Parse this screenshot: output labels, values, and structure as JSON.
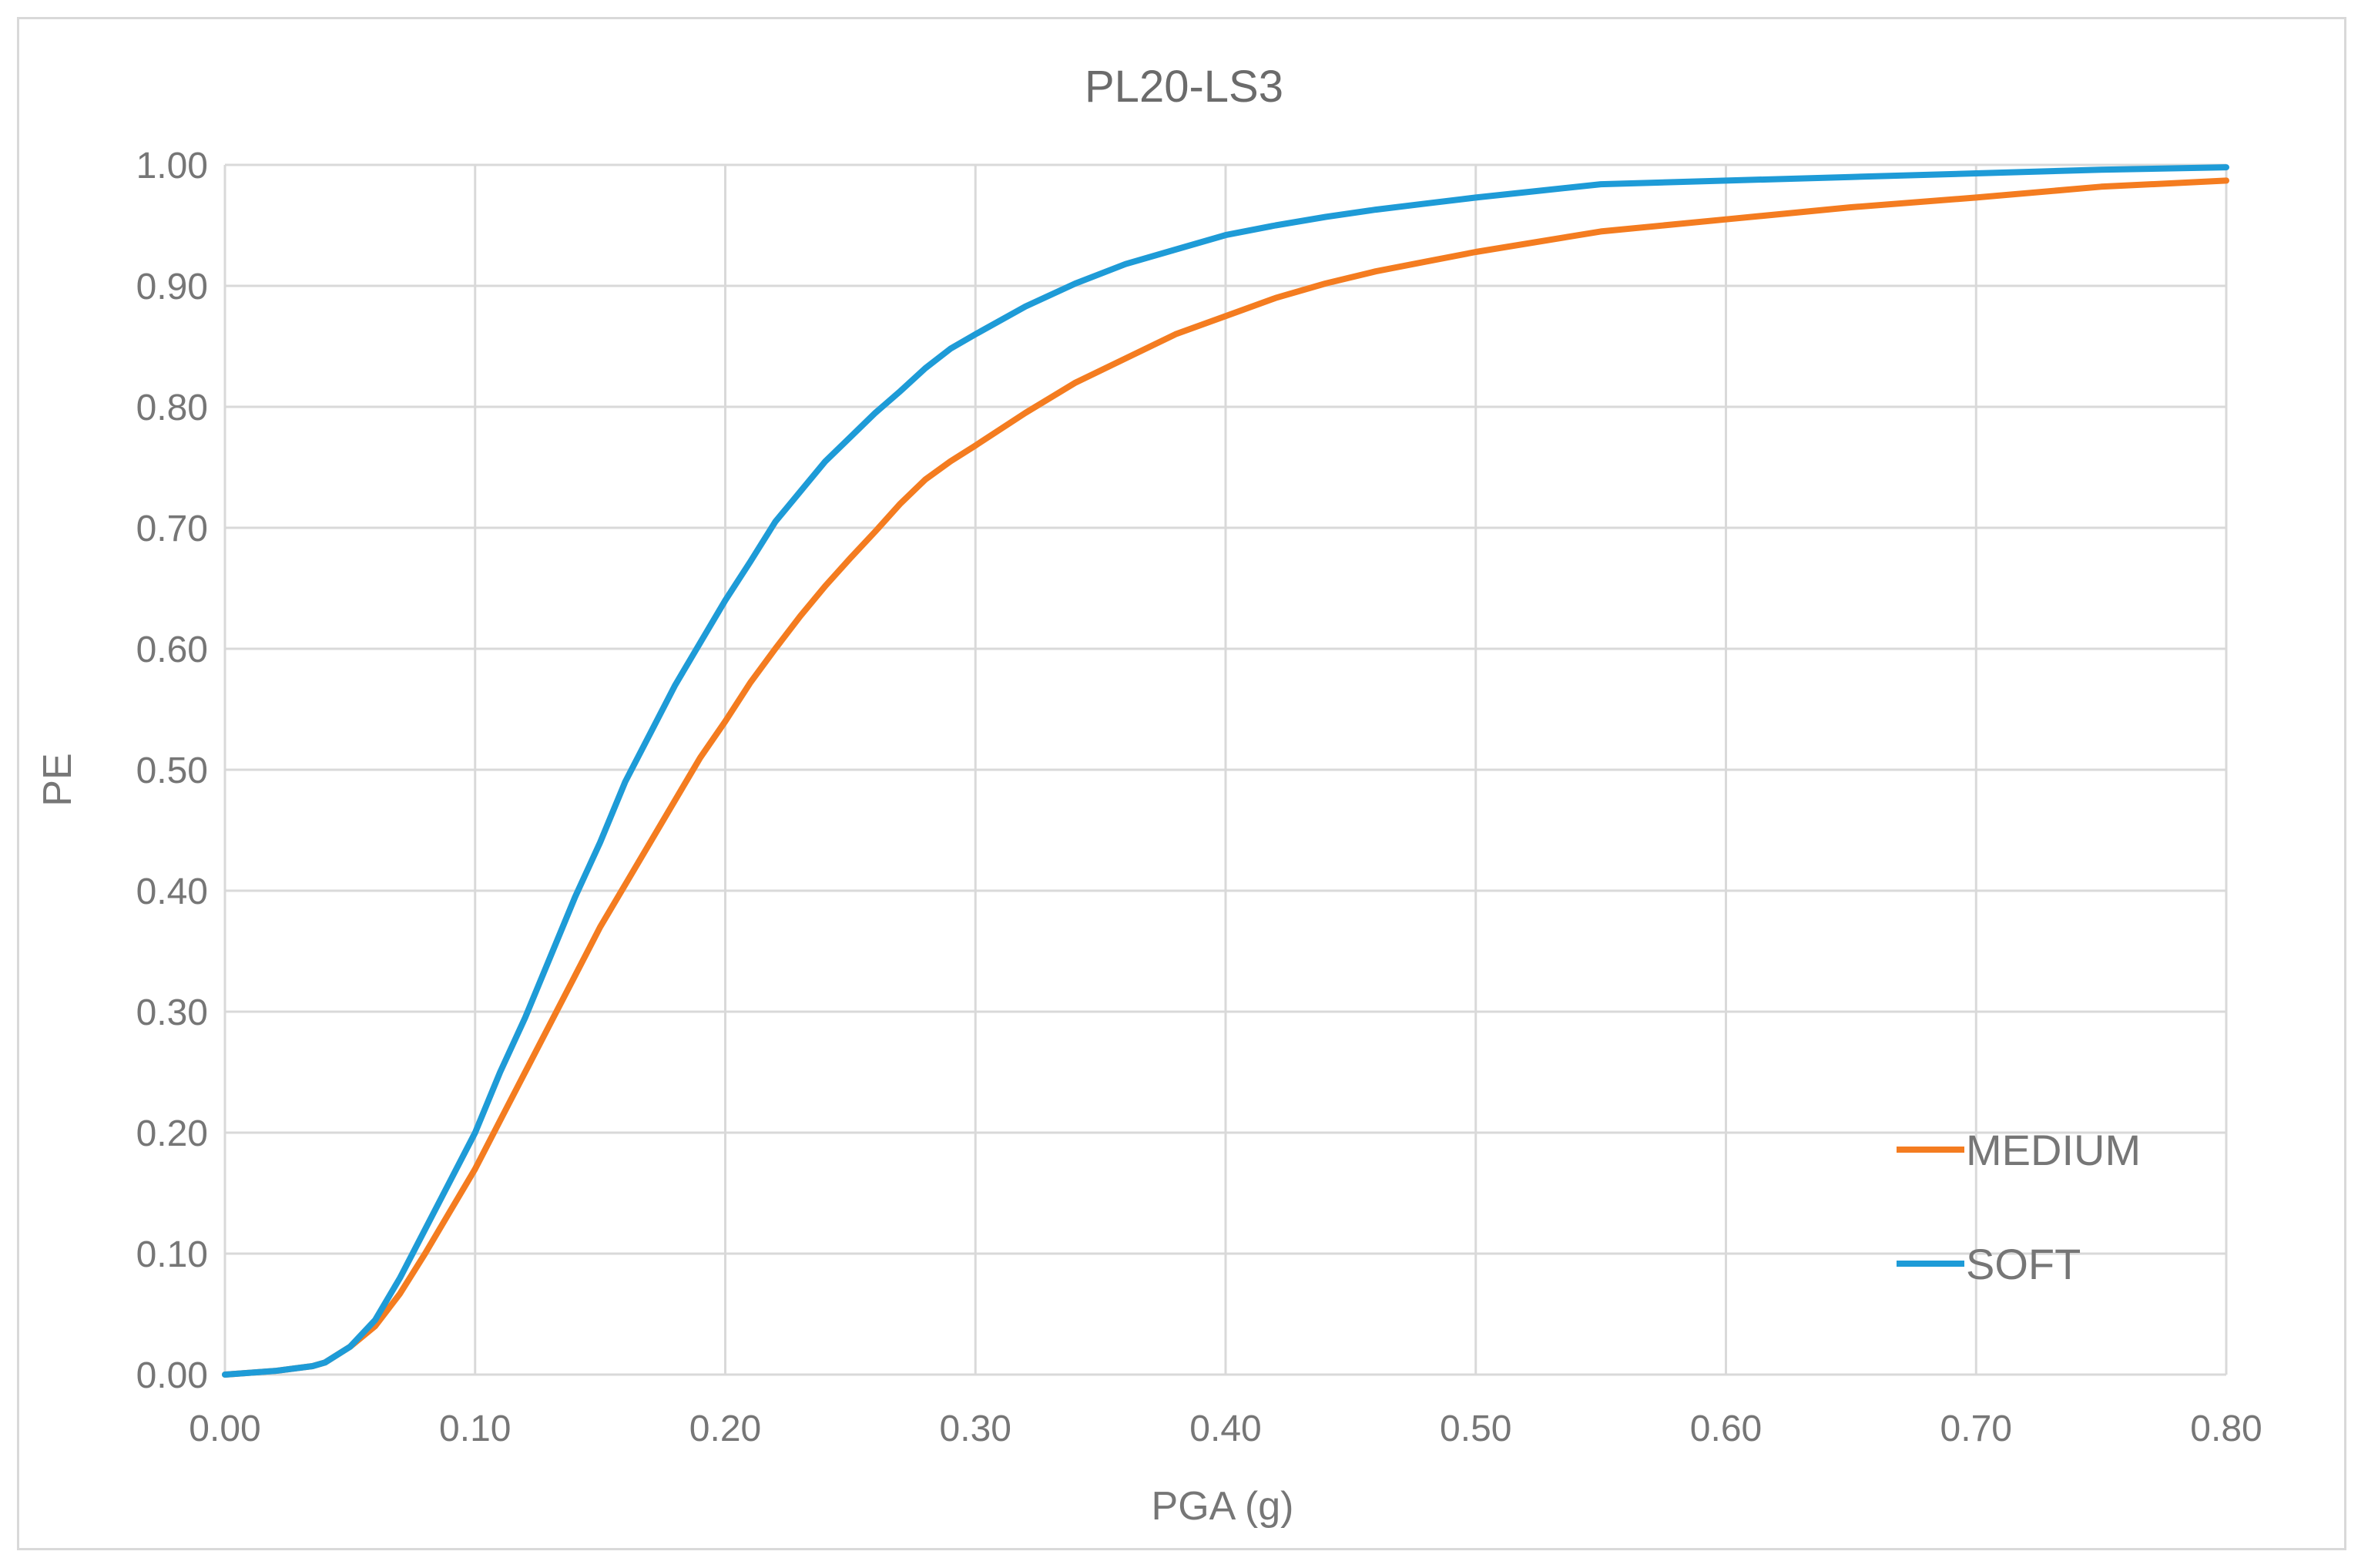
{
  "chart_data": {
    "type": "line",
    "title": "PL20-LS3",
    "xlabel": "PGA (g)",
    "ylabel": "PE",
    "xlim": [
      0,
      0.8
    ],
    "ylim": [
      0,
      1
    ],
    "x_ticks": [
      "0.00",
      "0.10",
      "0.20",
      "0.30",
      "0.40",
      "0.50",
      "0.60",
      "0.70",
      "0.80"
    ],
    "y_ticks": [
      "0.00",
      "0.10",
      "0.20",
      "0.30",
      "0.40",
      "0.50",
      "0.60",
      "0.70",
      "0.80",
      "0.90",
      "1.00"
    ],
    "grid": true,
    "legend_position": "bottom-right",
    "series": [
      {
        "name": "MEDIUM",
        "color": "#f47c20",
        "x": [
          0,
          0.02,
          0.035,
          0.04,
          0.05,
          0.06,
          0.07,
          0.08,
          0.09,
          0.1,
          0.11,
          0.12,
          0.13,
          0.14,
          0.15,
          0.16,
          0.17,
          0.18,
          0.19,
          0.2,
          0.21,
          0.22,
          0.23,
          0.24,
          0.25,
          0.26,
          0.27,
          0.28,
          0.29,
          0.3,
          0.32,
          0.34,
          0.36,
          0.38,
          0.4,
          0.42,
          0.44,
          0.46,
          0.48,
          0.5,
          0.55,
          0.6,
          0.65,
          0.7,
          0.75,
          0.8
        ],
        "y": [
          0,
          0.003,
          0.007,
          0.01,
          0.023,
          0.04,
          0.067,
          0.1,
          0.135,
          0.17,
          0.21,
          0.25,
          0.29,
          0.33,
          0.37,
          0.405,
          0.44,
          0.475,
          0.51,
          0.54,
          0.572,
          0.6,
          0.627,
          0.652,
          0.675,
          0.697,
          0.72,
          0.74,
          0.755,
          0.768,
          0.795,
          0.82,
          0.84,
          0.86,
          0.875,
          0.89,
          0.902,
          0.912,
          0.92,
          0.928,
          0.945,
          0.955,
          0.965,
          0.973,
          0.982,
          0.987
        ]
      },
      {
        "name": "SOFT",
        "color": "#1e9bd7",
        "x": [
          0,
          0.02,
          0.035,
          0.04,
          0.05,
          0.06,
          0.07,
          0.08,
          0.09,
          0.1,
          0.11,
          0.12,
          0.13,
          0.14,
          0.15,
          0.16,
          0.17,
          0.18,
          0.19,
          0.2,
          0.21,
          0.22,
          0.23,
          0.24,
          0.25,
          0.26,
          0.27,
          0.28,
          0.29,
          0.3,
          0.32,
          0.34,
          0.36,
          0.38,
          0.4,
          0.42,
          0.44,
          0.46,
          0.48,
          0.5,
          0.55,
          0.6,
          0.65,
          0.7,
          0.75,
          0.8
        ],
        "y": [
          0,
          0.003,
          0.007,
          0.01,
          0.023,
          0.045,
          0.08,
          0.12,
          0.16,
          0.2,
          0.25,
          0.295,
          0.345,
          0.395,
          0.44,
          0.49,
          0.53,
          0.57,
          0.605,
          0.64,
          0.672,
          0.705,
          0.73,
          0.755,
          0.775,
          0.795,
          0.813,
          0.832,
          0.848,
          0.86,
          0.883,
          0.902,
          0.918,
          0.93,
          0.942,
          0.95,
          0.957,
          0.963,
          0.968,
          0.973,
          0.984,
          0.987,
          0.99,
          0.993,
          0.996,
          0.998
        ]
      }
    ]
  }
}
